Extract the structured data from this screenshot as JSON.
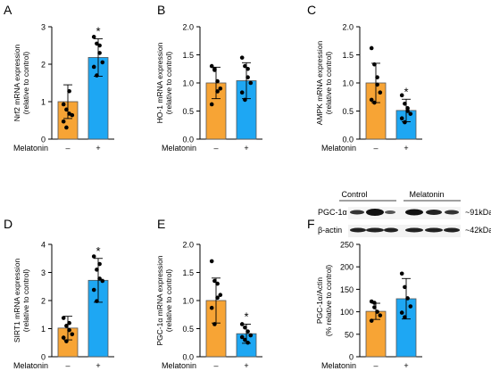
{
  "chart_data": [
    {
      "panel": "A",
      "type": "bar",
      "ylabel": [
        "Nrf2 mRNA expression",
        "(relative to control)"
      ],
      "ylim": [
        0,
        3
      ],
      "ticks": [
        0,
        1,
        2,
        3
      ],
      "group_label": "Melatonin",
      "categories": [
        "–",
        "+"
      ],
      "values": [
        1.0,
        2.18
      ],
      "errors": [
        0.45,
        0.5
      ],
      "points": [
        [
          0.93,
          0.79,
          0.68,
          0.64,
          0.47,
          0.31,
          1.28
        ],
        [
          2.73,
          2.55,
          2.3,
          2.05,
          1.93,
          1.7,
          2.5
        ]
      ],
      "significance": [
        "",
        "*"
      ]
    },
    {
      "panel": "B",
      "type": "bar",
      "ylabel": [
        "HO-1 mRNA expression",
        "(relative to control)"
      ],
      "ylim": [
        0,
        2
      ],
      "ticks": [
        "0.0",
        "0.5",
        "1.0",
        "1.5",
        "2.0"
      ],
      "group_label": "Melatonin",
      "categories": [
        "–",
        "+"
      ],
      "values": [
        1.0,
        1.04
      ],
      "errors": [
        0.28,
        0.32
      ],
      "points": [
        [
          1.3,
          1.23,
          1.03,
          0.9,
          0.62,
          1.25,
          0.85
        ],
        [
          1.45,
          1.3,
          1.1,
          1.0,
          0.83,
          0.7,
          1.25
        ]
      ],
      "significance": [
        "",
        ""
      ]
    },
    {
      "panel": "C",
      "type": "bar",
      "ylabel": [
        "AMPK mRNA expression",
        "(relative to control)"
      ],
      "ylim": [
        0,
        2
      ],
      "ticks": [
        "0.0",
        "0.5",
        "1.0",
        "1.5",
        "2.0"
      ],
      "group_label": "Melatonin",
      "categories": [
        "–",
        "+"
      ],
      "values": [
        1.0,
        0.51
      ],
      "errors": [
        0.35,
        0.2
      ],
      "points": [
        [
          1.62,
          1.33,
          0.97,
          0.83,
          0.7,
          0.65,
          1.1
        ],
        [
          0.78,
          0.63,
          0.55,
          0.45,
          0.37,
          0.3,
          0.5
        ]
      ],
      "significance": [
        "",
        "*"
      ]
    },
    {
      "panel": "D",
      "type": "bar",
      "ylabel": [
        "SIRT1 mRNA expression",
        "(relative to control)"
      ],
      "ylim": [
        0,
        4
      ],
      "ticks": [
        0,
        1,
        2,
        3,
        4
      ],
      "group_label": "Melatonin",
      "categories": [
        "–",
        "+"
      ],
      "values": [
        1.02,
        2.72
      ],
      "errors": [
        0.42,
        0.78
      ],
      "points": [
        [
          1.38,
          1.1,
          0.95,
          0.8,
          0.68,
          0.55,
          1.2
        ],
        [
          3.57,
          3.1,
          2.78,
          2.7,
          2.38,
          1.98,
          3.3
        ]
      ],
      "significance": [
        "",
        "*"
      ]
    },
    {
      "panel": "E",
      "type": "bar",
      "ylabel": [
        "PGC-1α mRNA expression",
        "(relative to control)"
      ],
      "ylim": [
        0,
        2
      ],
      "ticks": [
        "0.0",
        "0.5",
        "1.0",
        "1.5",
        "2.0"
      ],
      "group_label": "Melatonin",
      "categories": [
        "–",
        "+"
      ],
      "values": [
        1.0,
        0.41
      ],
      "errors": [
        0.4,
        0.17
      ],
      "points": [
        [
          1.7,
          1.35,
          1.05,
          1.1,
          0.87,
          0.58,
          1.3
        ],
        [
          0.58,
          0.52,
          0.45,
          0.38,
          0.35,
          0.3,
          0.25
        ]
      ],
      "significance": [
        "",
        "*"
      ]
    },
    {
      "panel": "F",
      "type": "bar",
      "ylabel": [
        "PGC-1α/Actin",
        "(% relative to control)"
      ],
      "ylim": [
        0,
        250
      ],
      "ticks": [
        0,
        50,
        100,
        150,
        200,
        250
      ],
      "group_label": "Melatonin",
      "categories": [
        "–",
        "+"
      ],
      "values": [
        101,
        129
      ],
      "errors": [
        18,
        45
      ],
      "points": [
        [
          123,
          110,
          100,
          92,
          80,
          120
        ],
        [
          185,
          155,
          130,
          112,
          98,
          88
        ]
      ],
      "significance": [
        "",
        ""
      ]
    }
  ],
  "western_blot": {
    "groups": [
      "Control",
      "Melatonin"
    ],
    "rows": [
      {
        "label": "PGC-1α",
        "size": "~91kDa"
      },
      {
        "label": "β-actin",
        "size": "~42kDa"
      }
    ]
  },
  "colors": {
    "control": "#f7a435",
    "melatonin": "#1ea7f3",
    "bar_edge": "#555555"
  }
}
